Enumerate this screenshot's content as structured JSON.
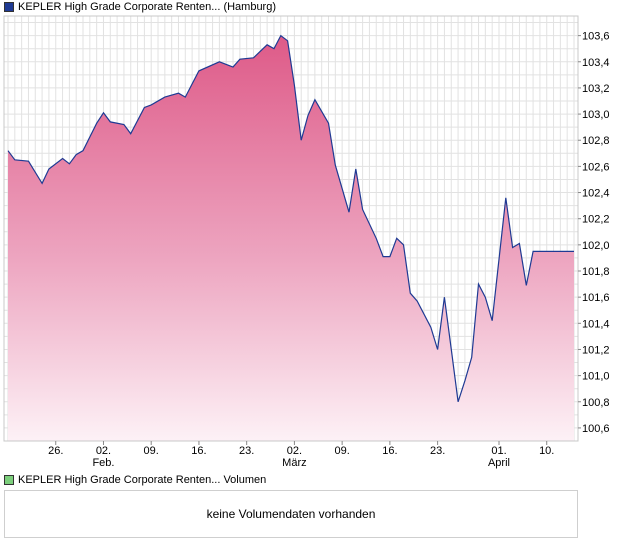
{
  "legend": {
    "price_label": "KEPLER High Grade Corporate Renten... (Hamburg)",
    "price_color": "#1f3a93",
    "volume_label": "KEPLER High Grade Corporate Renten... Volumen",
    "volume_color": "#7ccf7c"
  },
  "volume_panel": {
    "message": "keine Volumendaten vorhanden"
  },
  "chart_data": {
    "type": "area",
    "title": "KEPLER High Grade Corporate Renten... (Hamburg)",
    "xlabel": "",
    "ylabel": "",
    "ylim": [
      100.5,
      103.75
    ],
    "y_ticks": [
      100.6,
      100.8,
      101.0,
      101.2,
      101.4,
      101.6,
      101.8,
      102.0,
      102.2,
      102.4,
      102.6,
      102.8,
      103.0,
      103.2,
      103.4,
      103.6
    ],
    "y_tick_labels": [
      "100,6",
      "100,8",
      "101,0",
      "101,2",
      "101,4",
      "101,6",
      "101,8",
      "102,0",
      "102,2",
      "102,4",
      "102,6",
      "102,8",
      "103,0",
      "103,2",
      "103,4",
      "103,6"
    ],
    "x_range": [
      0,
      83
    ],
    "x_ticks": [
      {
        "pos": 7,
        "label": "26.",
        "sub": ""
      },
      {
        "pos": 14,
        "label": "02.",
        "sub": "Feb."
      },
      {
        "pos": 21,
        "label": "09.",
        "sub": ""
      },
      {
        "pos": 28,
        "label": "16.",
        "sub": ""
      },
      {
        "pos": 35,
        "label": "23.",
        "sub": ""
      },
      {
        "pos": 42,
        "label": "02.",
        "sub": "März"
      },
      {
        "pos": 49,
        "label": "09.",
        "sub": ""
      },
      {
        "pos": 56,
        "label": "16.",
        "sub": ""
      },
      {
        "pos": 63,
        "label": "23.",
        "sub": ""
      },
      {
        "pos": 72,
        "label": "01.",
        "sub": "April"
      },
      {
        "pos": 79,
        "label": "10.",
        "sub": ""
      }
    ],
    "series": [
      {
        "name": "KEPLER High Grade Corporate Renten... (Hamburg)",
        "x": [
          0,
          1,
          3,
          5,
          6,
          8,
          9,
          10,
          11,
          13,
          14,
          15,
          17,
          18,
          20,
          21,
          23,
          25,
          26,
          28,
          31,
          33,
          34,
          36,
          38,
          39,
          40,
          41,
          42,
          43,
          44,
          45,
          47,
          48,
          50,
          51,
          52,
          54,
          55,
          56,
          57,
          58,
          59,
          60,
          62,
          63,
          64,
          65,
          66,
          67,
          68,
          69,
          70,
          71,
          73,
          74,
          75,
          76,
          77,
          78,
          79,
          80,
          81,
          82,
          83
        ],
        "values": [
          102.72,
          102.65,
          102.64,
          102.47,
          102.58,
          102.66,
          102.62,
          102.69,
          102.72,
          102.93,
          103.01,
          102.94,
          102.92,
          102.85,
          103.05,
          103.07,
          103.13,
          103.16,
          103.13,
          103.33,
          103.4,
          103.36,
          103.42,
          103.43,
          103.53,
          103.5,
          103.6,
          103.56,
          103.22,
          102.8,
          102.99,
          103.11,
          102.93,
          102.61,
          102.25,
          102.58,
          102.27,
          102.05,
          101.91,
          101.91,
          102.05,
          102.0,
          101.63,
          101.57,
          101.37,
          101.2,
          101.6,
          101.2,
          100.8,
          100.96,
          101.14,
          101.7,
          101.6,
          101.42,
          102.36,
          101.98,
          102.01,
          101.69,
          101.95,
          101.95,
          101.95,
          101.95,
          101.95,
          101.95,
          101.95
        ]
      }
    ],
    "grid": true,
    "legend_position": "top-left"
  }
}
